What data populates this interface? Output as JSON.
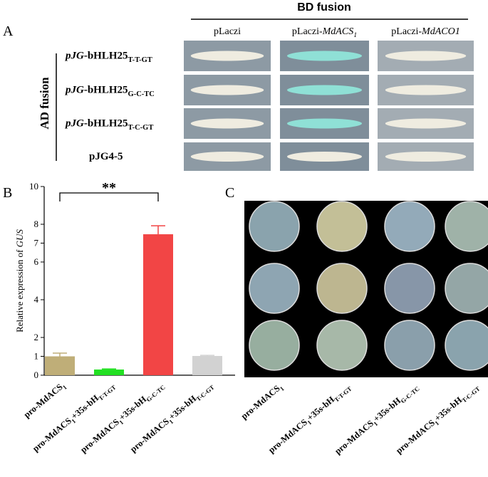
{
  "panel_labels": [
    "A",
    "B",
    "C"
  ],
  "panel_a": {
    "header": "BD fusion",
    "side_label": "AD fusion",
    "columns": [
      {
        "text": "pLaczi"
      },
      {
        "text": "pLaczi-",
        "gene": "MdACS",
        "sub": "1"
      },
      {
        "text": "pLaczi-",
        "gene": "MdACO1"
      }
    ],
    "rows": [
      {
        "prefix": "pJG",
        "name": "-bHLH25",
        "sub": "T-T-GT"
      },
      {
        "prefix": "pJG",
        "name": "-bHLH25",
        "sub": "G-C-TC"
      },
      {
        "prefix": "pJG",
        "name": "-bHLH25",
        "sub": "T-C-GT"
      },
      {
        "name": "pJG4-5"
      }
    ]
  },
  "chart_data": {
    "type": "bar",
    "y_label": [
      "Relative expression of ",
      "GUS"
    ],
    "categories": [
      [
        "pro-MdACS",
        "1"
      ],
      [
        "pro-MdACS",
        "1",
        "+35s-bH",
        "T-T-GT"
      ],
      [
        "pro-MdACS",
        "1",
        "+35s-bH",
        "G-C-TC"
      ],
      [
        "pro-MdACS",
        "1",
        "+35s-bH",
        "T-C-GT"
      ]
    ],
    "values": [
      1.0,
      0.3,
      7.47,
      1.02
    ],
    "errors": [
      0.17,
      0.03,
      0.45,
      0.03
    ],
    "colors": [
      "#bfae78",
      "#22e022",
      "#f24545",
      "#d2d2d2"
    ],
    "ylim": [
      0,
      10
    ],
    "yticks": [
      0,
      1,
      2,
      4,
      6,
      7,
      8,
      10
    ],
    "annotation": "**",
    "grid": false
  }
}
